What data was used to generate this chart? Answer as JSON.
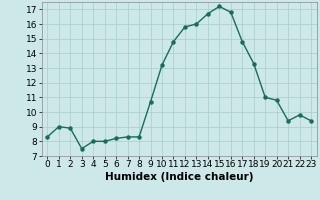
{
  "x": [
    0,
    1,
    2,
    3,
    4,
    5,
    6,
    7,
    8,
    9,
    10,
    11,
    12,
    13,
    14,
    15,
    16,
    17,
    18,
    19,
    20,
    21,
    22,
    23
  ],
  "y": [
    8.3,
    9.0,
    8.9,
    7.5,
    8.0,
    8.0,
    8.2,
    8.3,
    8.3,
    10.7,
    13.2,
    14.8,
    15.8,
    16.0,
    16.7,
    17.2,
    16.8,
    14.8,
    13.3,
    11.0,
    10.8,
    9.4,
    9.8,
    9.4
  ],
  "line_color": "#1a6b5a",
  "marker_color": "#1a6b5a",
  "bg_color": "#cce8e8",
  "grid_color": "#aacccc",
  "xlabel": "Humidex (Indice chaleur)",
  "xlim": [
    -0.5,
    23.5
  ],
  "ylim": [
    7,
    17.5
  ],
  "yticks": [
    7,
    8,
    9,
    10,
    11,
    12,
    13,
    14,
    15,
    16,
    17
  ],
  "xticks": [
    0,
    1,
    2,
    3,
    4,
    5,
    6,
    7,
    8,
    9,
    10,
    11,
    12,
    13,
    14,
    15,
    16,
    17,
    18,
    19,
    20,
    21,
    22,
    23
  ],
  "label_fontsize": 7.5,
  "tick_fontsize": 6.5
}
